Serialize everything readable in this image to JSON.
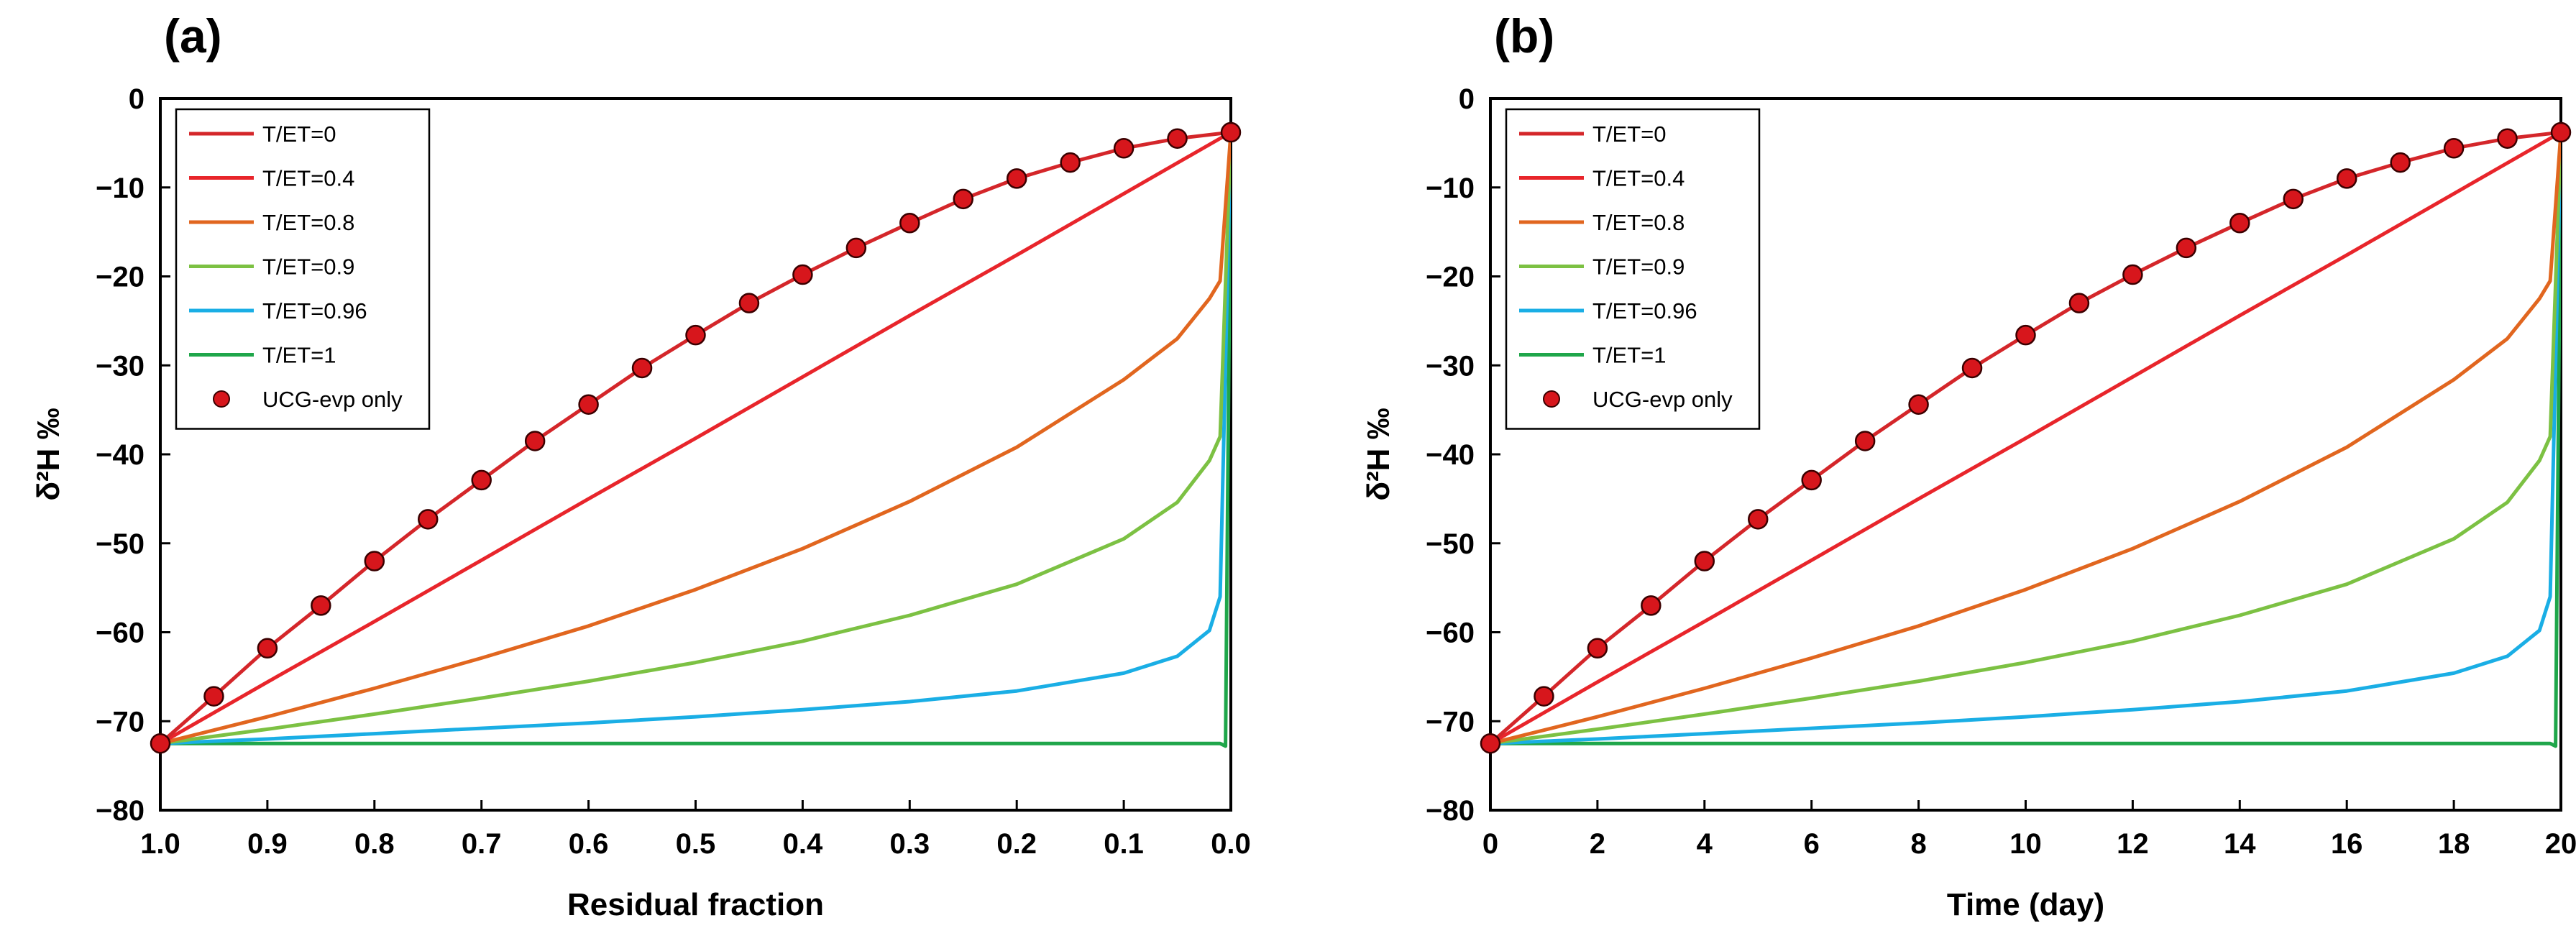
{
  "chart_data": [
    {
      "type": "line",
      "panel_label": "(a)",
      "title": "",
      "xlabel": "Residual fraction",
      "ylabel": "δ²H ‰",
      "xlim": [
        1.0,
        0.0
      ],
      "ylim": [
        -80,
        0
      ],
      "x_reversed": true,
      "xticks": [
        1.0,
        0.9,
        0.8,
        0.7,
        0.6,
        0.5,
        0.4,
        0.3,
        0.2,
        0.1,
        0.0
      ],
      "xtick_labels": [
        "1.0",
        "0.9",
        "0.8",
        "0.7",
        "0.6",
        "0.5",
        "0.4",
        "0.3",
        "0.2",
        "0.1",
        "0.0"
      ],
      "yticks": [
        0,
        -10,
        -20,
        -30,
        -40,
        -50,
        -60,
        -70,
        -80
      ],
      "ytick_labels": [
        "0",
        "−10",
        "−20",
        "−30",
        "−40",
        "−50",
        "−60",
        "−70",
        "−80"
      ],
      "legend_position": "top-left",
      "series": [
        {
          "name": "T/ET=0",
          "color": "#d4262a",
          "style": "line",
          "x": [
            1.0,
            0.95,
            0.9,
            0.85,
            0.8,
            0.75,
            0.7,
            0.65,
            0.6,
            0.55,
            0.5,
            0.45,
            0.4,
            0.35,
            0.3,
            0.25,
            0.2,
            0.15,
            0.1,
            0.05,
            0.0
          ],
          "y": [
            -72.5,
            -67.2,
            -61.8,
            -57.0,
            -52.0,
            -47.3,
            -42.9,
            -38.5,
            -34.4,
            -30.3,
            -26.6,
            -23.0,
            -19.8,
            -16.8,
            -14.0,
            -11.3,
            -9.0,
            -7.2,
            -5.6,
            -4.5,
            -3.8
          ]
        },
        {
          "name": "T/ET=0.4",
          "color": "#e8252b",
          "style": "line",
          "x": [
            1.0,
            0.9,
            0.8,
            0.7,
            0.6,
            0.5,
            0.4,
            0.3,
            0.2,
            0.1,
            0.0
          ],
          "y": [
            -72.5,
            -65.6,
            -58.8,
            -51.9,
            -45.0,
            -38.2,
            -31.3,
            -24.4,
            -17.6,
            -10.7,
            -3.8
          ]
        },
        {
          "name": "T/ET=0.8",
          "color": "#e1661f",
          "style": "line",
          "x": [
            1.0,
            0.9,
            0.8,
            0.7,
            0.6,
            0.5,
            0.4,
            0.3,
            0.2,
            0.1,
            0.05,
            0.02,
            0.01,
            0.0
          ],
          "y": [
            -72.5,
            -69.5,
            -66.3,
            -62.9,
            -59.3,
            -55.2,
            -50.6,
            -45.3,
            -39.2,
            -31.6,
            -27.0,
            -22.5,
            -20.5,
            -3.8
          ]
        },
        {
          "name": "T/ET=0.9",
          "color": "#7cc143",
          "style": "line",
          "x": [
            1.0,
            0.9,
            0.8,
            0.7,
            0.6,
            0.5,
            0.4,
            0.3,
            0.2,
            0.1,
            0.05,
            0.02,
            0.01,
            0.0
          ],
          "y": [
            -72.5,
            -70.9,
            -69.2,
            -67.4,
            -65.5,
            -63.4,
            -61.0,
            -58.1,
            -54.6,
            -49.5,
            -45.4,
            -40.7,
            -38.0,
            -3.8
          ]
        },
        {
          "name": "T/ET=0.96",
          "color": "#1aaee5",
          "style": "line",
          "x": [
            1.0,
            0.9,
            0.8,
            0.7,
            0.6,
            0.5,
            0.4,
            0.3,
            0.2,
            0.1,
            0.05,
            0.02,
            0.01,
            0.0
          ],
          "y": [
            -72.5,
            -72.0,
            -71.4,
            -70.8,
            -70.2,
            -69.5,
            -68.7,
            -67.8,
            -66.6,
            -64.6,
            -62.7,
            -59.8,
            -56.0,
            -3.8
          ]
        },
        {
          "name": "T/ET=1",
          "color": "#1fa64a",
          "style": "line",
          "x": [
            1.0,
            0.5,
            0.01,
            0.005,
            0.0
          ],
          "y": [
            -72.5,
            -72.5,
            -72.5,
            -72.8,
            -3.8
          ]
        },
        {
          "name": "UCG-evp only",
          "color": "#d7161c",
          "style": "marker",
          "x": [
            1.0,
            0.95,
            0.9,
            0.85,
            0.8,
            0.75,
            0.7,
            0.65,
            0.6,
            0.55,
            0.5,
            0.45,
            0.4,
            0.35,
            0.3,
            0.25,
            0.2,
            0.15,
            0.1,
            0.05,
            0.0
          ],
          "y": [
            -72.5,
            -67.2,
            -61.8,
            -57.0,
            -52.0,
            -47.3,
            -42.9,
            -38.5,
            -34.4,
            -30.3,
            -26.6,
            -23.0,
            -19.8,
            -16.8,
            -14.0,
            -11.3,
            -9.0,
            -7.2,
            -5.6,
            -4.5,
            -3.8
          ]
        }
      ]
    },
    {
      "type": "line",
      "panel_label": "(b)",
      "title": "",
      "xlabel": "Time (day)",
      "ylabel": "δ²H ‰",
      "xlim": [
        0,
        20
      ],
      "ylim": [
        -80,
        0
      ],
      "x_reversed": false,
      "xticks": [
        0,
        2,
        4,
        6,
        8,
        10,
        12,
        14,
        16,
        18,
        20
      ],
      "xtick_labels": [
        "0",
        "2",
        "4",
        "6",
        "8",
        "10",
        "12",
        "14",
        "16",
        "18",
        "20"
      ],
      "yticks": [
        0,
        -10,
        -20,
        -30,
        -40,
        -50,
        -60,
        -70,
        -80
      ],
      "ytick_labels": [
        "0",
        "−10",
        "−20",
        "−30",
        "−40",
        "−50",
        "−60",
        "−70",
        "−80"
      ],
      "legend_position": "top-left",
      "series": [
        {
          "name": "T/ET=0",
          "color": "#d4262a",
          "style": "line",
          "x": [
            0,
            1,
            2,
            3,
            4,
            5,
            6,
            7,
            8,
            9,
            10,
            11,
            12,
            13,
            14,
            15,
            16,
            17,
            18,
            19,
            20
          ],
          "y": [
            -72.5,
            -67.2,
            -61.8,
            -57.0,
            -52.0,
            -47.3,
            -42.9,
            -38.5,
            -34.4,
            -30.3,
            -26.6,
            -23.0,
            -19.8,
            -16.8,
            -14.0,
            -11.3,
            -9.0,
            -7.2,
            -5.6,
            -4.5,
            -3.8
          ]
        },
        {
          "name": "T/ET=0.4",
          "color": "#e8252b",
          "style": "line",
          "x": [
            0,
            2,
            4,
            6,
            8,
            10,
            12,
            14,
            16,
            18,
            20
          ],
          "y": [
            -72.5,
            -65.6,
            -58.8,
            -51.9,
            -45.0,
            -38.2,
            -31.3,
            -24.4,
            -17.6,
            -10.7,
            -3.8
          ]
        },
        {
          "name": "T/ET=0.8",
          "color": "#e1661f",
          "style": "line",
          "x": [
            0,
            2,
            4,
            6,
            8,
            10,
            12,
            14,
            16,
            18,
            19,
            19.6,
            19.8,
            20
          ],
          "y": [
            -72.5,
            -69.5,
            -66.3,
            -62.9,
            -59.3,
            -55.2,
            -50.6,
            -45.3,
            -39.2,
            -31.6,
            -27.0,
            -22.5,
            -20.5,
            -3.8
          ]
        },
        {
          "name": "T/ET=0.9",
          "color": "#7cc143",
          "style": "line",
          "x": [
            0,
            2,
            4,
            6,
            8,
            10,
            12,
            14,
            16,
            18,
            19,
            19.6,
            19.8,
            20
          ],
          "y": [
            -72.5,
            -70.9,
            -69.2,
            -67.4,
            -65.5,
            -63.4,
            -61.0,
            -58.1,
            -54.6,
            -49.5,
            -45.4,
            -40.7,
            -38.0,
            -3.8
          ]
        },
        {
          "name": "T/ET=0.96",
          "color": "#1aaee5",
          "style": "line",
          "x": [
            0,
            2,
            4,
            6,
            8,
            10,
            12,
            14,
            16,
            18,
            19,
            19.6,
            19.8,
            20
          ],
          "y": [
            -72.5,
            -72.0,
            -71.4,
            -70.8,
            -70.2,
            -69.5,
            -68.7,
            -67.8,
            -66.6,
            -64.6,
            -62.7,
            -59.8,
            -56.0,
            -3.8
          ]
        },
        {
          "name": "T/ET=1",
          "color": "#1fa64a",
          "style": "line",
          "x": [
            0,
            10,
            19.8,
            19.9,
            20
          ],
          "y": [
            -72.5,
            -72.5,
            -72.5,
            -72.8,
            -3.8
          ]
        },
        {
          "name": "UCG-evp only",
          "color": "#d7161c",
          "style": "marker",
          "x": [
            0,
            1,
            2,
            3,
            4,
            5,
            6,
            7,
            8,
            9,
            10,
            11,
            12,
            13,
            14,
            15,
            16,
            17,
            18,
            19,
            20
          ],
          "y": [
            -72.5,
            -67.2,
            -61.8,
            -57.0,
            -52.0,
            -47.3,
            -42.9,
            -38.5,
            -34.4,
            -30.3,
            -26.6,
            -23.0,
            -19.8,
            -16.8,
            -14.0,
            -11.3,
            -9.0,
            -7.2,
            -5.6,
            -4.5,
            -3.8
          ]
        }
      ]
    }
  ]
}
